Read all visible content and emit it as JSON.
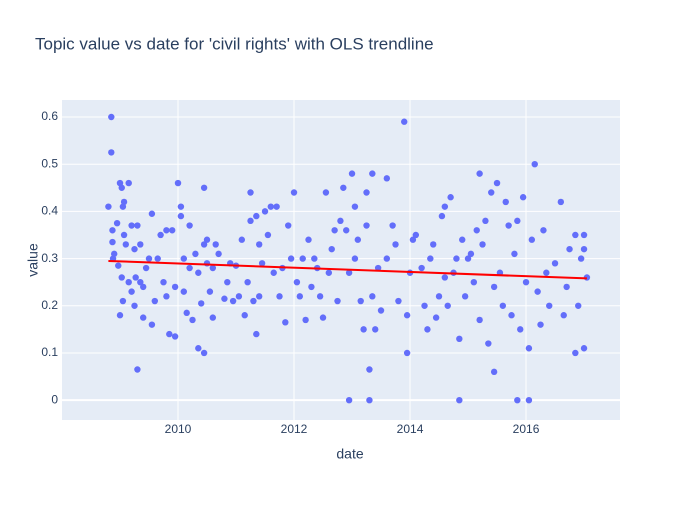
{
  "chart_data": {
    "type": "scatter",
    "title": "Topic value vs date for 'civil rights' with OLS trendline",
    "x_label": "date",
    "y_label": "value",
    "color": "#636efa",
    "grid": true,
    "xlim": [
      2008,
      2017.62
    ],
    "xticks": [
      2010,
      2012,
      2014,
      2016
    ],
    "ylim": [
      -0.042,
      0.636
    ],
    "yticks": [
      0,
      0.1,
      0.2,
      0.3,
      0.4,
      0.5,
      0.6
    ],
    "x": [
      2008.8,
      2008.85,
      2008.85,
      2008.87,
      2008.87,
      2008.9,
      2008.88,
      2008.95,
      2008.97,
      2009.0,
      2009.0,
      2009.03,
      2009.05,
      2009.07,
      2009.07,
      2009.03,
      2009.05,
      2009.1,
      2009.15,
      2009.15,
      2009.2,
      2009.2,
      2009.25,
      2009.25,
      2009.27,
      2009.3,
      2009.3,
      2009.35,
      2009.35,
      2009.4,
      2009.4,
      2009.45,
      2009.5,
      2009.55,
      2009.55,
      2009.6,
      2009.65,
      2009.7,
      2009.75,
      2009.8,
      2009.8,
      2009.85,
      2009.9,
      2009.95,
      2009.95,
      2010.0,
      2010.05,
      2010.05,
      2010.1,
      2010.1,
      2010.15,
      2010.2,
      2010.2,
      2010.25,
      2010.3,
      2010.35,
      2010.35,
      2010.4,
      2010.45,
      2010.45,
      2010.45,
      2010.5,
      2010.5,
      2010.55,
      2010.6,
      2010.6,
      2010.65,
      2010.7,
      2010.8,
      2010.85,
      2010.9,
      2010.95,
      2011.0,
      2011.05,
      2011.1,
      2011.15,
      2011.2,
      2011.25,
      2011.25,
      2011.3,
      2011.35,
      2011.35,
      2011.4,
      2011.4,
      2011.45,
      2011.5,
      2011.55,
      2011.6,
      2011.65,
      2011.7,
      2011.75,
      2011.8,
      2011.85,
      2011.9,
      2011.95,
      2012.0,
      2012.05,
      2012.1,
      2012.15,
      2012.2,
      2012.25,
      2012.3,
      2012.35,
      2012.4,
      2012.45,
      2012.5,
      2012.55,
      2012.6,
      2012.65,
      2012.7,
      2012.75,
      2012.8,
      2012.85,
      2012.9,
      2012.95,
      2012.95,
      2013.0,
      2013.05,
      2013.05,
      2013.1,
      2013.15,
      2013.2,
      2013.25,
      2013.25,
      2013.3,
      2013.3,
      2013.35,
      2013.35,
      2013.4,
      2013.45,
      2013.5,
      2013.6,
      2013.6,
      2013.7,
      2013.75,
      2013.8,
      2013.9,
      2013.95,
      2013.95,
      2014.0,
      2014.05,
      2014.1,
      2014.2,
      2014.25,
      2014.3,
      2014.35,
      2014.4,
      2014.45,
      2014.5,
      2014.55,
      2014.6,
      2014.6,
      2014.65,
      2014.7,
      2014.75,
      2014.8,
      2014.85,
      2014.85,
      2014.9,
      2014.95,
      2015.0,
      2015.05,
      2015.1,
      2015.15,
      2015.2,
      2015.2,
      2015.25,
      2015.3,
      2015.35,
      2015.4,
      2015.45,
      2015.45,
      2015.5,
      2015.55,
      2015.6,
      2015.65,
      2015.7,
      2015.75,
      2015.8,
      2015.85,
      2015.85,
      2015.9,
      2015.95,
      2016.0,
      2016.05,
      2016.05,
      2016.1,
      2016.15,
      2016.2,
      2016.25,
      2016.3,
      2016.35,
      2016.4,
      2016.5,
      2016.6,
      2016.65,
      2016.7,
      2016.75,
      2016.85,
      2016.85,
      2016.9,
      2016.95,
      2017.0,
      2017.0,
      2017.05,
      2017.0
    ],
    "values": [
      0.41,
      0.6,
      0.525,
      0.36,
      0.335,
      0.31,
      0.3,
      0.375,
      0.285,
      0.18,
      0.46,
      0.45,
      0.41,
      0.35,
      0.42,
      0.26,
      0.21,
      0.33,
      0.46,
      0.25,
      0.23,
      0.37,
      0.32,
      0.2,
      0.26,
      0.065,
      0.37,
      0.33,
      0.25,
      0.24,
      0.175,
      0.28,
      0.3,
      0.395,
      0.16,
      0.21,
      0.3,
      0.35,
      0.25,
      0.22,
      0.36,
      0.14,
      0.36,
      0.135,
      0.24,
      0.46,
      0.41,
      0.39,
      0.3,
      0.23,
      0.185,
      0.37,
      0.28,
      0.17,
      0.31,
      0.11,
      0.27,
      0.205,
      0.45,
      0.1,
      0.33,
      0.34,
      0.29,
      0.23,
      0.28,
      0.175,
      0.33,
      0.31,
      0.215,
      0.25,
      0.29,
      0.21,
      0.285,
      0.22,
      0.34,
      0.18,
      0.25,
      0.44,
      0.38,
      0.21,
      0.39,
      0.14,
      0.33,
      0.22,
      0.29,
      0.4,
      0.35,
      0.41,
      0.27,
      0.41,
      0.22,
      0.28,
      0.165,
      0.37,
      0.3,
      0.44,
      0.25,
      0.22,
      0.3,
      0.17,
      0.34,
      0.24,
      0.3,
      0.28,
      0.22,
      0.175,
      0.44,
      0.27,
      0.32,
      0.36,
      0.21,
      0.38,
      0.45,
      0.36,
      0.0,
      0.27,
      0.48,
      0.41,
      0.3,
      0.34,
      0.21,
      0.15,
      0.44,
      0.37,
      0.065,
      0.0,
      0.48,
      0.22,
      0.15,
      0.28,
      0.19,
      0.47,
      0.3,
      0.37,
      0.33,
      0.21,
      0.59,
      0.1,
      0.18,
      0.27,
      0.34,
      0.35,
      0.28,
      0.2,
      0.15,
      0.3,
      0.33,
      0.175,
      0.22,
      0.39,
      0.41,
      0.26,
      0.2,
      0.43,
      0.27,
      0.3,
      0.13,
      0.0,
      0.34,
      0.22,
      0.3,
      0.31,
      0.25,
      0.36,
      0.48,
      0.17,
      0.33,
      0.38,
      0.12,
      0.44,
      0.06,
      0.24,
      0.46,
      0.27,
      0.2,
      0.42,
      0.37,
      0.18,
      0.31,
      0.0,
      0.38,
      0.15,
      0.43,
      0.25,
      0.11,
      0.0,
      0.34,
      0.5,
      0.23,
      0.16,
      0.36,
      0.27,
      0.2,
      0.29,
      0.42,
      0.18,
      0.24,
      0.32,
      0.1,
      0.35,
      0.2,
      0.3,
      0.11,
      0.35,
      0.26,
      0.32
    ],
    "trendline": {
      "color": "#ff0000",
      "x": [
        2008.8,
        2017.05
      ],
      "values": [
        0.295,
        0.258
      ]
    }
  }
}
